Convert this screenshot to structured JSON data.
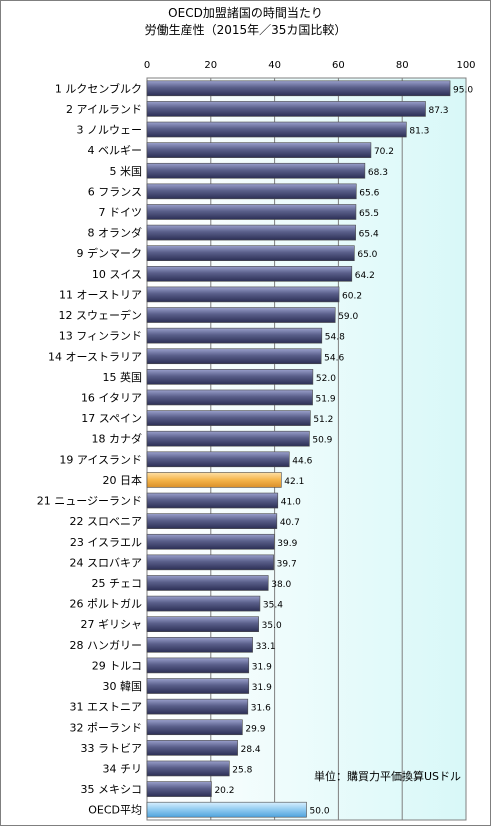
{
  "chart_data": {
    "type": "bar",
    "orientation": "horizontal",
    "title": "OECD加盟諸国の時間当たり",
    "subtitle": "労働生産性（2015年／35カ国比較）",
    "unit_note": "単位：購買力平価換算USドル",
    "xlim": [
      0,
      100
    ],
    "x_ticks": [
      "0",
      "20",
      "40",
      "60",
      "80",
      "100"
    ],
    "grid": true,
    "categories": [
      "1 ルクセンブルク",
      "2 アイルランド",
      "3 ノルウェー",
      "4 ベルギー",
      "5 米国",
      "6 フランス",
      "7 ドイツ",
      "8 オランダ",
      "9 デンマーク",
      "10 スイス",
      "11 オーストリア",
      "12 スウェーデン",
      "13 フィンランド",
      "14 オーストラリア",
      "15 英国",
      "16 イタリア",
      "17 スペイン",
      "18 カナダ",
      "19 アイスランド",
      "20 日本",
      "21 ニュージーランド",
      "22 スロベニア",
      "23 イスラエル",
      "24 スロバキア",
      "25 チェコ",
      "26 ポルトガル",
      "27 ギリシャ",
      "28 ハンガリー",
      "29 トルコ",
      "30 韓国",
      "31 エストニア",
      "32 ポーランド",
      "33 ラトビア",
      "34 チリ",
      "35 メキシコ",
      "OECD平均"
    ],
    "values": [
      95.0,
      87.3,
      81.3,
      70.2,
      68.3,
      65.6,
      65.5,
      65.4,
      65.0,
      64.2,
      60.2,
      59.0,
      54.8,
      54.6,
      52.0,
      51.9,
      51.2,
      50.9,
      44.6,
      42.1,
      41.0,
      40.7,
      39.9,
      39.7,
      38.0,
      35.4,
      35.0,
      33.1,
      31.9,
      31.9,
      31.6,
      29.9,
      28.4,
      25.8,
      20.2,
      50.0
    ],
    "value_labels": [
      "95.0",
      "87.3",
      "81.3",
      "70.2",
      "68.3",
      "65.6",
      "65.5",
      "65.4",
      "65.0",
      "64.2",
      "60.2",
      "59.0",
      "54.8",
      "54.6",
      "52.0",
      "51.9",
      "51.2",
      "50.9",
      "44.6",
      "42.1",
      "41.0",
      "40.7",
      "39.9",
      "39.7",
      "38.0",
      "35.4",
      "35.0",
      "33.1",
      "31.9",
      "31.9",
      "31.6",
      "29.9",
      "28.4",
      "25.8",
      "20.2",
      "50.0"
    ],
    "colors": {
      "default_bar": "#5a5f8a",
      "highlight_japan": "#f5b54a",
      "oecd_average": "#8fcaf0",
      "plot_background_from": "#ffffff",
      "plot_background_to": "#d8f8f8",
      "gridline": "#7f7f7f"
    },
    "highlight_indices": {
      "japan": 19,
      "oecd_average": 35
    }
  }
}
